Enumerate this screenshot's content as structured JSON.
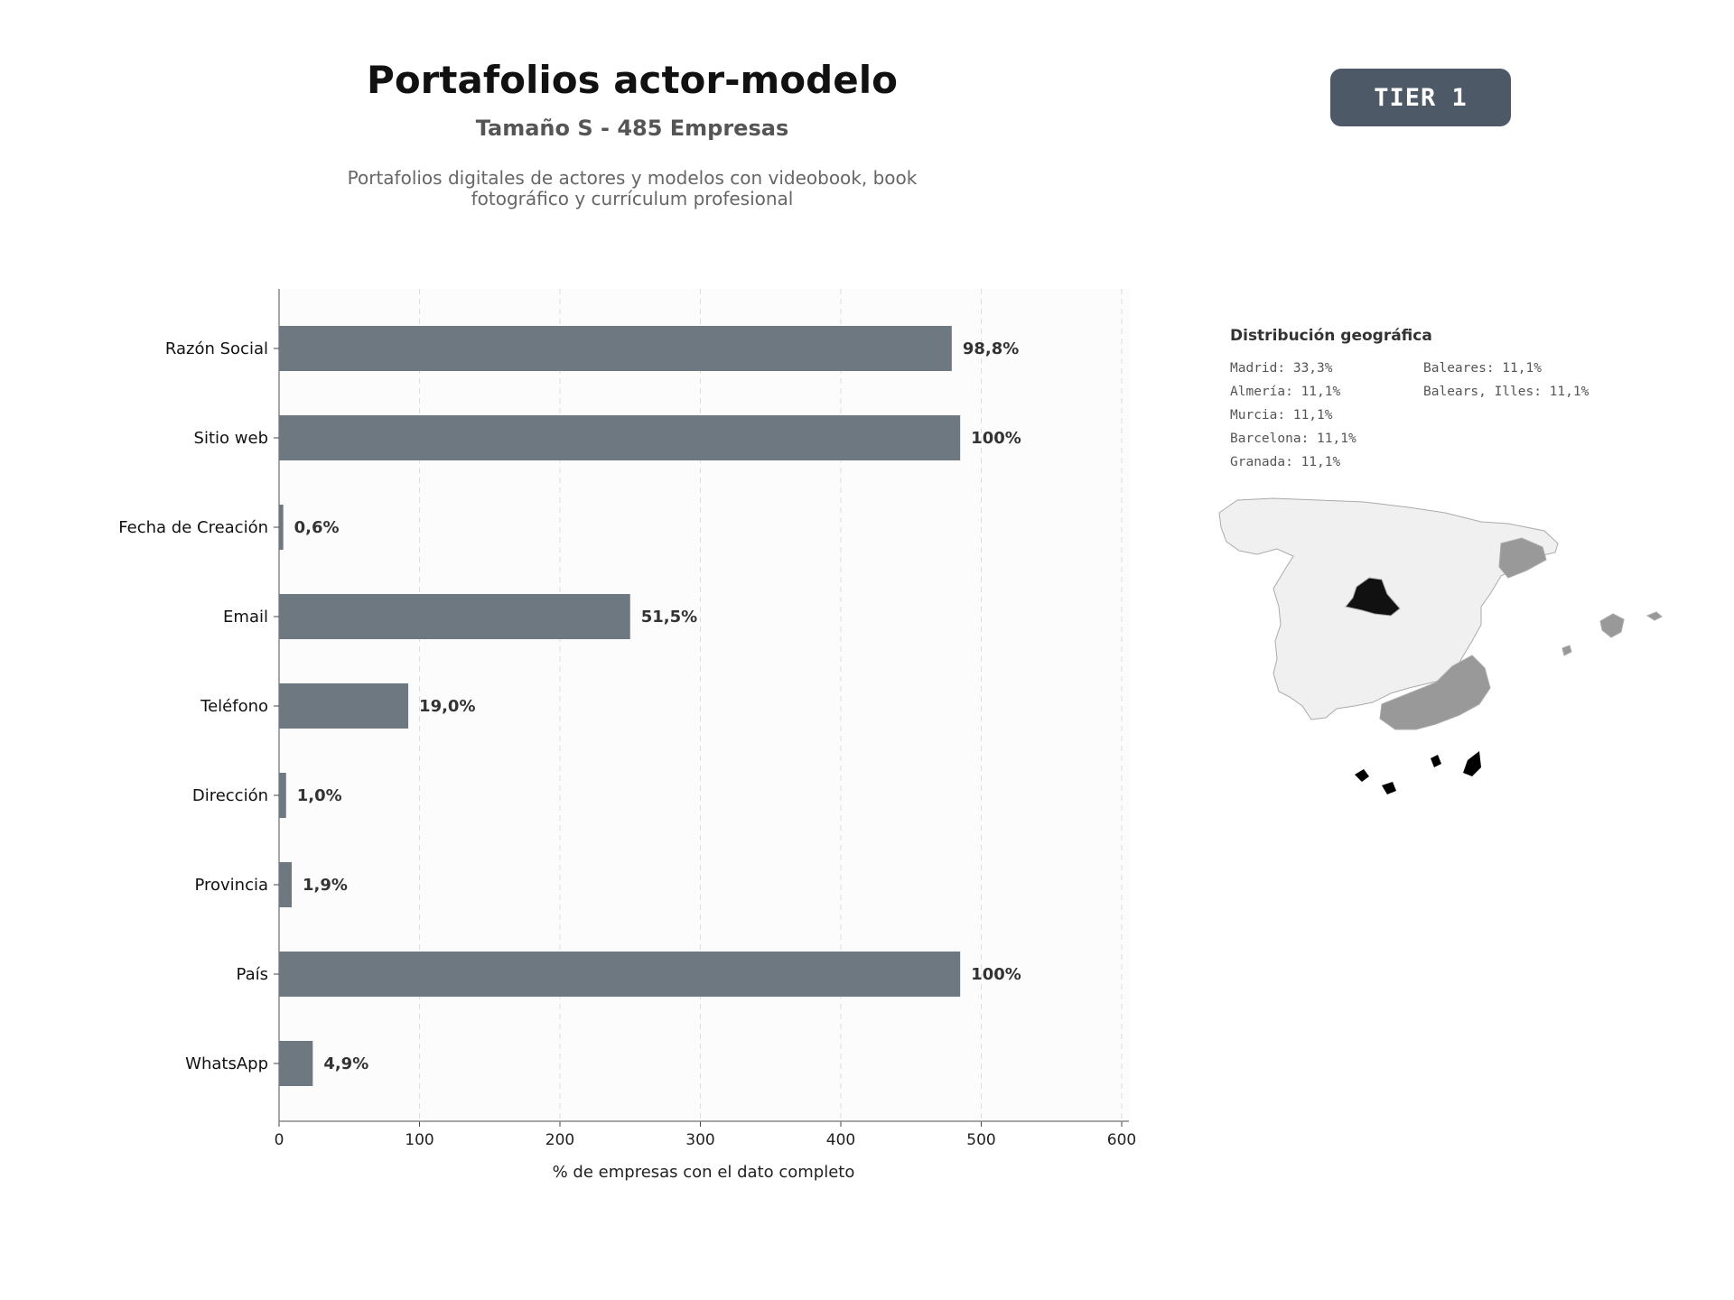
{
  "header": {
    "title": "Portafolios actor-modelo",
    "subtitle": "Tamaño S - 485 Empresas",
    "description": "Portafolios digitales de actores y modelos con videobook, book fotográfico y currículum profesional",
    "tier": "TIER 1"
  },
  "chart_data": {
    "type": "bar",
    "orientation": "horizontal",
    "categories": [
      "Razón Social",
      "Sitio web",
      "Fecha de Creación",
      "Email",
      "Teléfono",
      "Dirección",
      "Provincia",
      "País",
      "WhatsApp"
    ],
    "values": [
      479,
      485,
      3,
      250,
      92,
      5,
      9,
      485,
      24
    ],
    "labels": [
      "98,8%",
      "100%",
      "0,6%",
      "51,5%",
      "19,0%",
      "1,0%",
      "1,9%",
      "100%",
      "4,9%"
    ],
    "xlabel": "% de empresas con el dato completo",
    "ylabel": "",
    "xlim": [
      0,
      600
    ],
    "xticks": [
      0,
      100,
      200,
      300,
      400,
      500,
      600
    ],
    "grid": true,
    "bar_color": "#6e7881"
  },
  "geo": {
    "title": "Distribución geográfica",
    "items": [
      "Madrid: 33,3%",
      "Almería: 11,1%",
      "Murcia: 11,1%",
      "Barcelona: 11,1%",
      "Granada: 11,1%",
      "Baleares: 11,1%",
      "Balears, Illes: 11,1%"
    ],
    "colors": {
      "madrid": "#111111",
      "highlight": "#999999",
      "base": "#f0f0f0",
      "border": "#aaaaaa"
    }
  }
}
